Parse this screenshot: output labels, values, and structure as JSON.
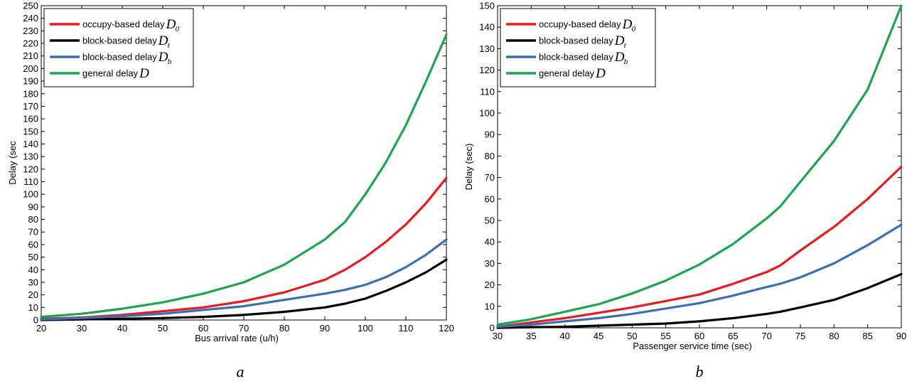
{
  "chart_data": [
    {
      "type": "line",
      "panel_label": "a",
      "xlabel": "Bus arrival rate (u/h)",
      "ylabel": "Delay (sec",
      "xlim": [
        20,
        120
      ],
      "ylim": [
        0,
        250
      ],
      "xticks": [
        20,
        30,
        40,
        50,
        60,
        70,
        80,
        90,
        100,
        110,
        120
      ],
      "yticks": [
        0,
        10,
        20,
        30,
        40,
        50,
        60,
        70,
        80,
        90,
        100,
        110,
        120,
        130,
        140,
        150,
        160,
        170,
        180,
        190,
        200,
        210,
        220,
        230,
        240,
        250
      ],
      "grid": false,
      "legend_position": "top-left",
      "x": [
        20,
        30,
        40,
        50,
        60,
        70,
        80,
        90,
        95,
        100,
        105,
        110,
        115,
        120
      ],
      "series": [
        {
          "name": "occupy-based delay",
          "symbol": "D",
          "subscript": "0",
          "color": "#e8191f",
          "values": [
            1,
            2,
            4,
            7,
            10,
            15,
            22,
            32,
            40,
            50,
            62,
            76,
            93,
            113
          ]
        },
        {
          "name": "block-based delay",
          "symbol": "D",
          "subscript": "t",
          "color": "#000000",
          "values": [
            0,
            0.5,
            1,
            1.5,
            2.5,
            4,
            6.5,
            10,
            13,
            17,
            23,
            30,
            38,
            48
          ]
        },
        {
          "name": "block-based delay",
          "symbol": "D",
          "subscript": "b",
          "color": "#3a6fb6",
          "values": [
            0.5,
            1.5,
            3,
            5,
            8,
            11,
            16,
            21,
            24,
            28,
            34,
            42,
            52,
            64
          ]
        },
        {
          "name": "general delay",
          "symbol": "D",
          "subscript": "",
          "color": "#1aa64b",
          "values": [
            2.5,
            5,
            9,
            14,
            21,
            30,
            44,
            64,
            78,
            100,
            125,
            155,
            190,
            227
          ]
        }
      ]
    },
    {
      "type": "line",
      "panel_label": "b",
      "xlabel": "Passenger service time (sec)",
      "ylabel": "Delay (sec)",
      "xlim": [
        30,
        90
      ],
      "ylim": [
        0,
        150
      ],
      "xticks": [
        30,
        35,
        40,
        45,
        50,
        55,
        60,
        65,
        70,
        75,
        80,
        85,
        90
      ],
      "yticks": [
        0,
        10,
        20,
        30,
        40,
        50,
        60,
        70,
        80,
        90,
        100,
        110,
        120,
        130,
        140,
        150
      ],
      "grid": false,
      "legend_position": "top-left",
      "x": [
        30,
        35,
        40,
        45,
        50,
        55,
        60,
        65,
        70,
        72,
        75,
        80,
        85,
        90
      ],
      "series": [
        {
          "name": "occupy-based delay",
          "symbol": "D",
          "subscript": "0",
          "color": "#e8191f",
          "values": [
            0.5,
            2.5,
            4.5,
            7,
            9.5,
            12.5,
            15.5,
            20.5,
            26,
            29,
            36,
            47,
            60,
            75
          ]
        },
        {
          "name": "block-based delay",
          "symbol": "D",
          "subscript": "t",
          "color": "#000000",
          "values": [
            0,
            0.3,
            0.5,
            1,
            1.5,
            2,
            3,
            4.5,
            6.5,
            7.5,
            9.5,
            13,
            18.5,
            25
          ]
        },
        {
          "name": "block-based delay",
          "symbol": "D",
          "subscript": "b",
          "color": "#3a6fb6",
          "values": [
            0.5,
            1.5,
            3,
            4.5,
            6.5,
            9,
            11.5,
            15,
            19,
            20.5,
            23.5,
            30,
            38.5,
            48
          ]
        },
        {
          "name": "general delay",
          "symbol": "D",
          "subscript": "",
          "color": "#1aa64b",
          "values": [
            1.5,
            4,
            7.5,
            11,
            16,
            22,
            29.5,
            39,
            51,
            56.5,
            68,
            87,
            111,
            150
          ]
        }
      ]
    }
  ]
}
